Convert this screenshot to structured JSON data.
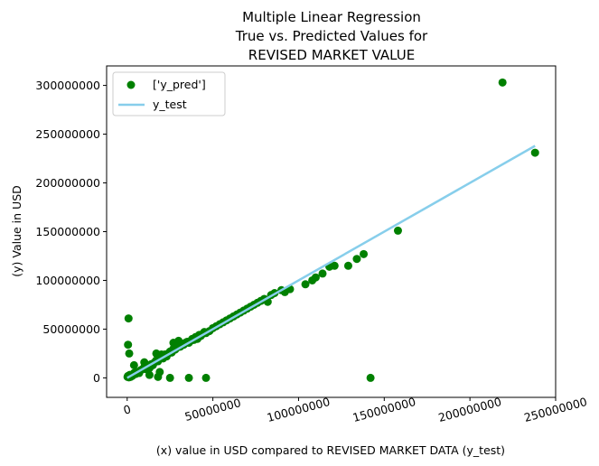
{
  "chart_data": {
    "type": "scatter",
    "title_lines": [
      "Multiple Linear Regression",
      "True vs. Predicted Values for",
      "REVISED MARKET VALUE"
    ],
    "xlabel": "(x) value in USD compared to REVISED MARKET DATA (y_test)",
    "ylabel": "(y) Value in USD",
    "xlim": [
      -12000000,
      250000000
    ],
    "ylim": [
      -20000000,
      320000000
    ],
    "xticks": [
      0,
      50000000,
      100000000,
      150000000,
      200000000,
      250000000
    ],
    "xtick_labels": [
      "0",
      "50000000",
      "100000000",
      "150000000",
      "200000000",
      "250000000"
    ],
    "yticks": [
      0,
      50000000,
      100000000,
      150000000,
      200000000,
      250000000,
      300000000
    ],
    "ytick_labels": [
      "0",
      "50000000",
      "100000000",
      "150000000",
      "200000000",
      "250000000",
      "300000000"
    ],
    "grid": false,
    "legend_position": "top-left",
    "legend": {
      "scatter_label": "['y_pred']",
      "line_label": "y_test"
    },
    "colors": {
      "scatter": "#008000",
      "line": "#87ceeb"
    },
    "line": {
      "x": [
        0,
        238000000
      ],
      "y": [
        0,
        238000000
      ]
    },
    "scatter": {
      "x": [
        200000,
        500000,
        1000000,
        1500000,
        2000000,
        3000000,
        4000000,
        5000000,
        6000000,
        7000000,
        8000000,
        9000000,
        10000000,
        11000000,
        12000000,
        13000000,
        14000000,
        15000000,
        16000000,
        17000000,
        18000000,
        19000000,
        20000000,
        21000000,
        22000000,
        23000000,
        24000000,
        25000000,
        26000000,
        27000000,
        28000000,
        29000000,
        30000000,
        31000000,
        32000000,
        33000000,
        34000000,
        35000000,
        36000000,
        37000000,
        38000000,
        39000000,
        40000000,
        41000000,
        42000000,
        43000000,
        44000000,
        45000000,
        46000000,
        48000000,
        50000000,
        52000000,
        54000000,
        56000000,
        58000000,
        60000000,
        62000000,
        64000000,
        66000000,
        68000000,
        70000000,
        72000000,
        74000000,
        76000000,
        78000000,
        80000000,
        82000000,
        84000000,
        86000000,
        90000000,
        92000000,
        95000000,
        104000000,
        108000000,
        110000000,
        114000000,
        118000000,
        121000000,
        129000000,
        134000000,
        138000000,
        158000000,
        219000000,
        238000000,
        800000,
        500000,
        1200000,
        4000000,
        10000000,
        13000000,
        17000000,
        18000000,
        19000000,
        20000000,
        25000000,
        27000000,
        30000000,
        36000000,
        46000000,
        142000000
      ],
      "y": [
        1000000,
        2000000,
        500000,
        3000000,
        1000000,
        2000000,
        5000000,
        4000000,
        6000000,
        5000000,
        8000000,
        9000000,
        11000000,
        9000000,
        12000000,
        10000000,
        14000000,
        13000000,
        16000000,
        18000000,
        17000000,
        20000000,
        22000000,
        20000000,
        24000000,
        22000000,
        25000000,
        27000000,
        26000000,
        30000000,
        29000000,
        31000000,
        33000000,
        32000000,
        35000000,
        34000000,
        36000000,
        37000000,
        36000000,
        38000000,
        40000000,
        39000000,
        42000000,
        40000000,
        44000000,
        43000000,
        45000000,
        47000000,
        46000000,
        48000000,
        51000000,
        53000000,
        55000000,
        57000000,
        59000000,
        61000000,
        63000000,
        65000000,
        67000000,
        69000000,
        71000000,
        73000000,
        75000000,
        77000000,
        79000000,
        81000000,
        78000000,
        85000000,
        87000000,
        90000000,
        88000000,
        91000000,
        96000000,
        100000000,
        103000000,
        107000000,
        114000000,
        115000000,
        115000000,
        122000000,
        127000000,
        151000000,
        303000000,
        231000000,
        61000000,
        34000000,
        25000000,
        13000000,
        16000000,
        3000000,
        25000000,
        1000000,
        6000000,
        24000000,
        0,
        36000000,
        38000000,
        0,
        0,
        0
      ]
    }
  }
}
